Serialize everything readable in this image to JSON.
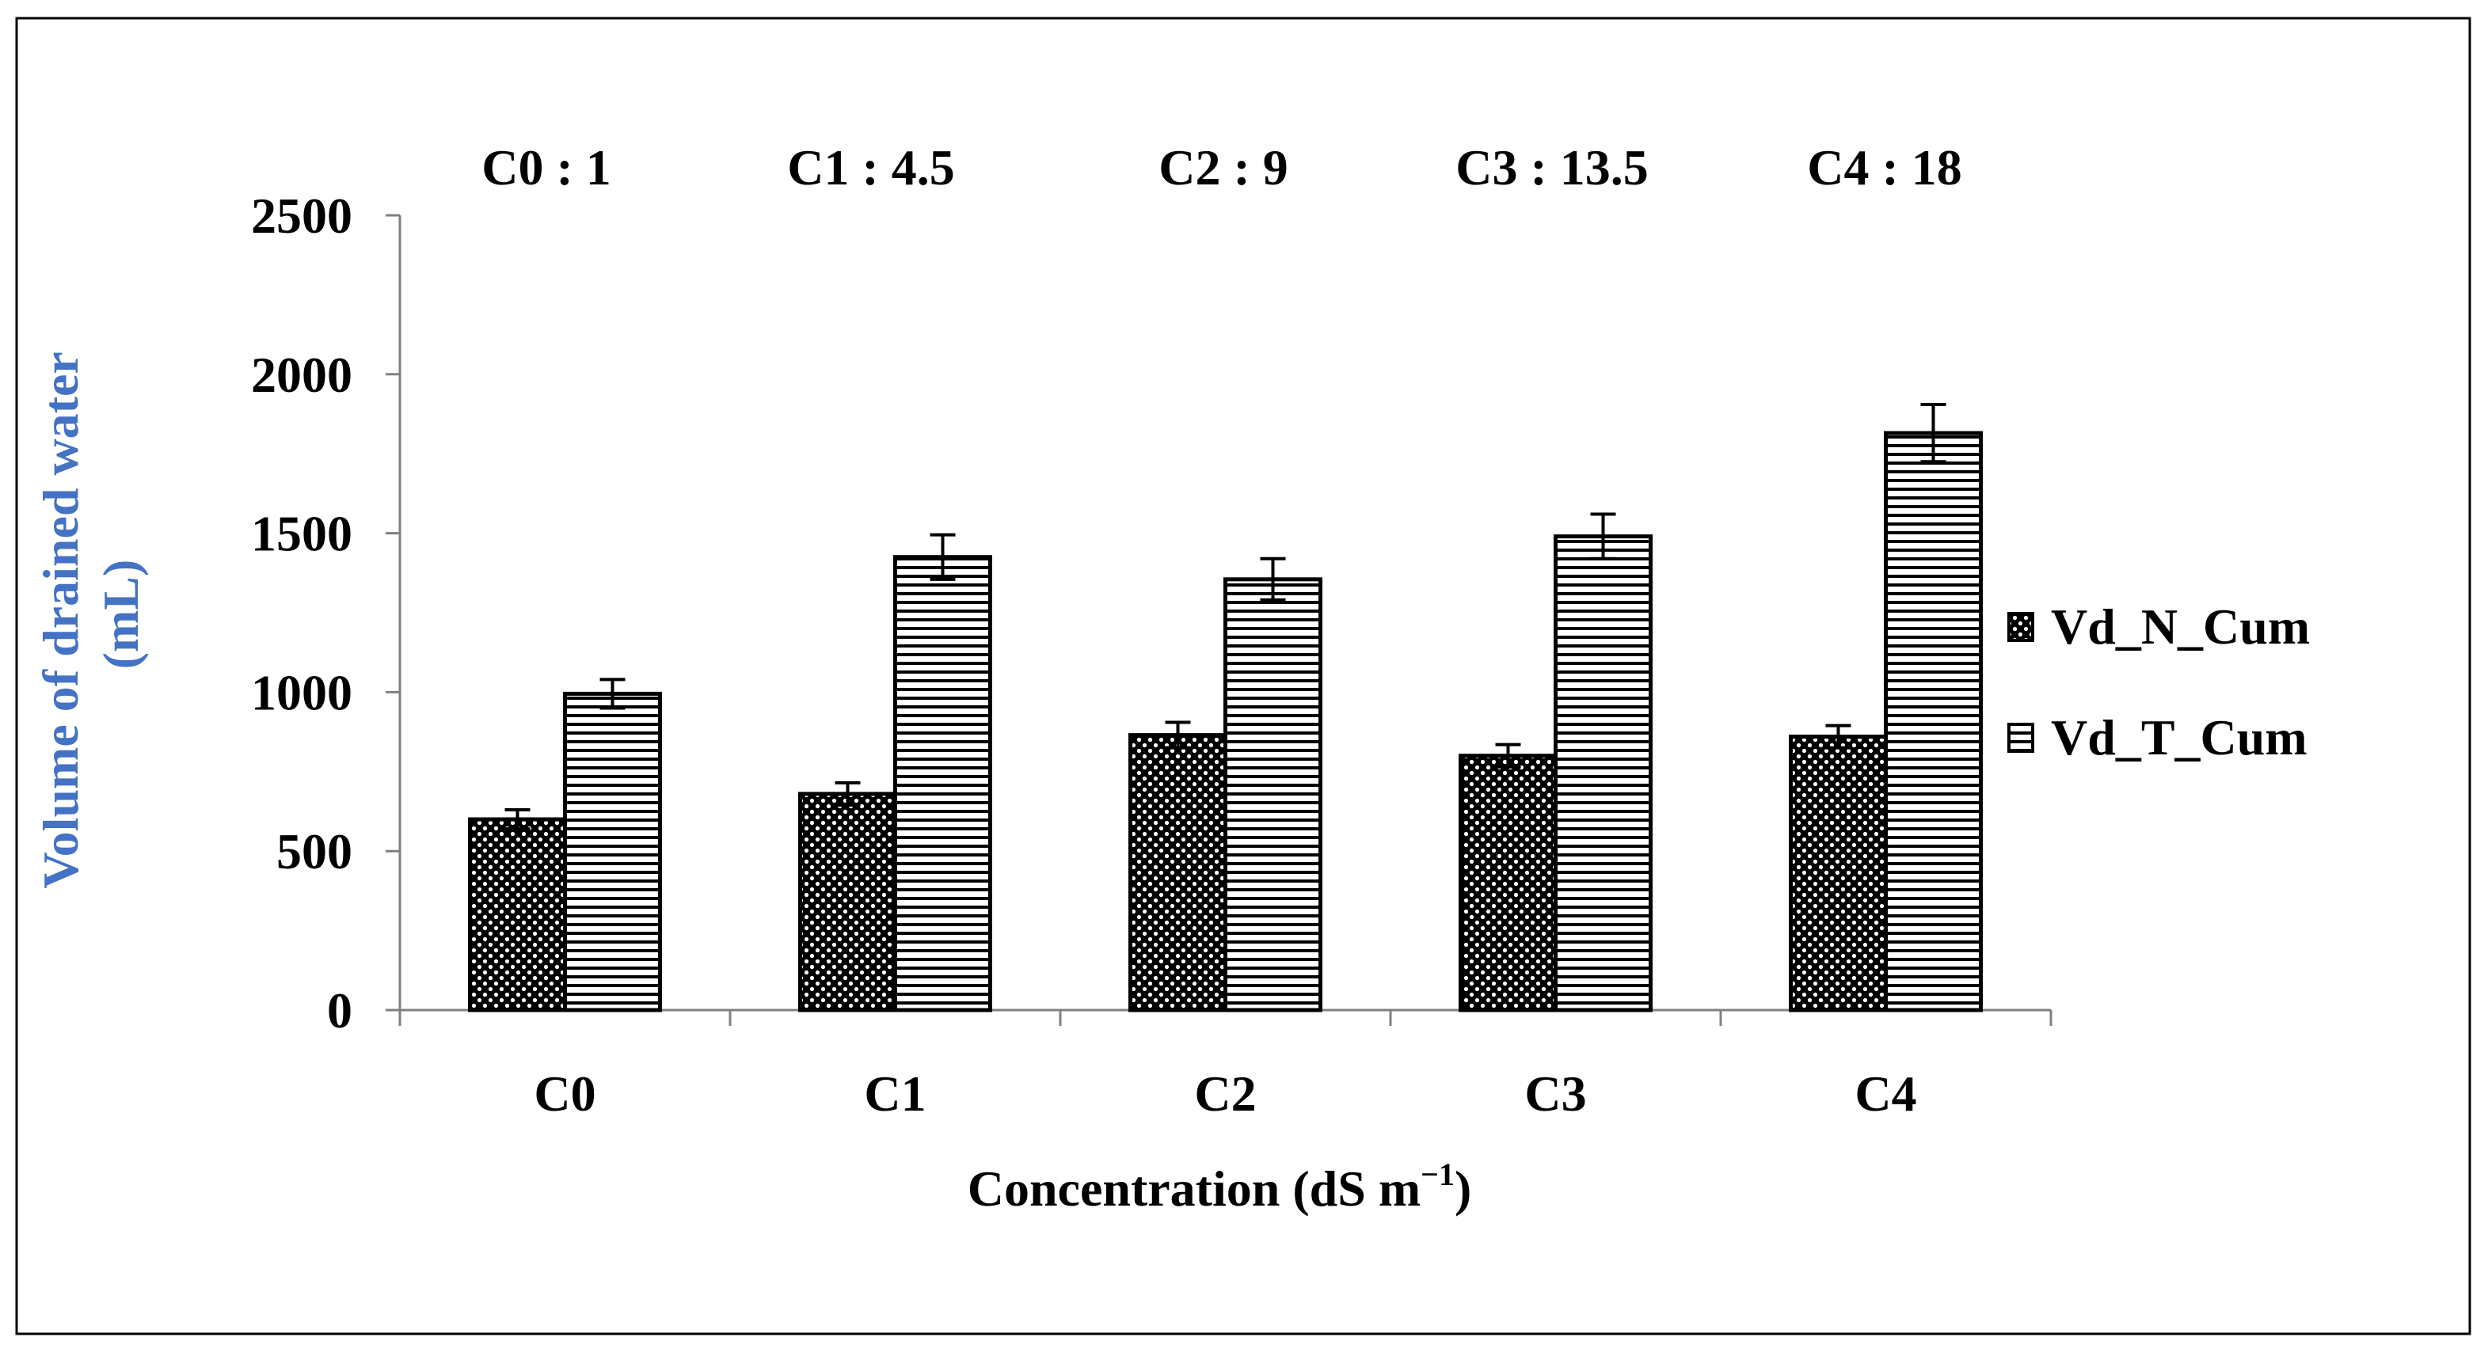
{
  "chart_data": {
    "type": "bar",
    "title": "",
    "xlabel": "Concentration (dS m",
    "xlabel_superscript": "−1",
    "xlabel_close": ")",
    "ylabel_lines": [
      "Volume of drained water",
      "(mL)"
    ],
    "categories": [
      "C0",
      "C1",
      "C2",
      "C3",
      "C4"
    ],
    "annotations": [
      "C0 : 1",
      "C1 : 4.5",
      "C2 : 9",
      "C3 : 13.5",
      "C4 : 18"
    ],
    "ylim": [
      0,
      2500
    ],
    "yticks": [
      0,
      500,
      1000,
      1500,
      2000,
      2500
    ],
    "grid": false,
    "legend_position": "right",
    "series": [
      {
        "name": "Vd_N_Cum",
        "pattern": "dots",
        "values": [
          600,
          680,
          865,
          800,
          860
        ],
        "errors": [
          30,
          35,
          40,
          35,
          35
        ]
      },
      {
        "name": "Vd_T_Cum",
        "pattern": "hlines",
        "values": [
          995,
          1425,
          1355,
          1490,
          1815
        ],
        "errors": [
          45,
          70,
          65,
          70,
          90
        ]
      }
    ],
    "colors": {
      "ylabel": "#4472C4",
      "ink": "#000000"
    }
  }
}
